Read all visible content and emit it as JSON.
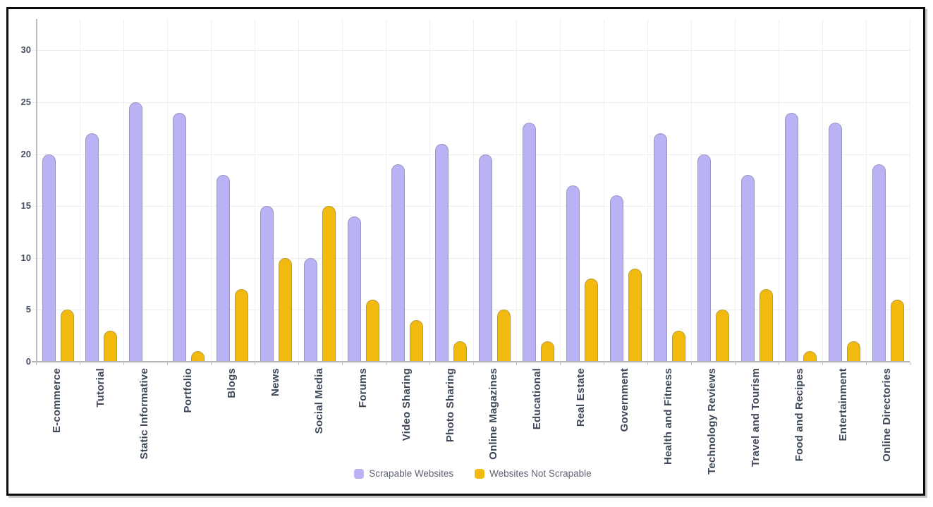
{
  "chart_data": {
    "type": "bar",
    "title": "",
    "xlabel": "",
    "ylabel": "",
    "categories": [
      "E-commerce",
      "Tutorial",
      "Static Informative",
      "Portfolio",
      "Blogs",
      "News",
      "Social Media",
      "Forums",
      "Video Sharing",
      "Photo Sharing",
      "Online Magazines",
      "Educational",
      "Real Estate",
      "Government",
      "Health and Fitness",
      "Technology Reviews",
      "Travel and Tourism",
      "Food and Recipes",
      "Entertainment",
      "Online Directories"
    ],
    "series": [
      {
        "name": "Scrapable Websites",
        "color": "#b9b3f5",
        "values": [
          20,
          22,
          25,
          24,
          18,
          15,
          10,
          14,
          19,
          21,
          20,
          23,
          17,
          16,
          22,
          20,
          18,
          24,
          23,
          19
        ]
      },
      {
        "name": "Websites Not Scrapable",
        "color": "#f2ba0e",
        "values": [
          5,
          3,
          0,
          1,
          7,
          10,
          15,
          6,
          4,
          2,
          5,
          2,
          8,
          9,
          3,
          5,
          7,
          1,
          2,
          6
        ]
      }
    ],
    "yticks": [
      0,
      5,
      10,
      15,
      20,
      25,
      30
    ],
    "ylim": [
      0,
      33
    ],
    "grid": true,
    "legend_position": "bottom",
    "colors": {
      "gridline": "#ededed",
      "axis": "#bdbdbd",
      "tick_label": "#475061",
      "category_label": "#3e4859",
      "legend_text": "#5d6370",
      "frame_border": "#0c0c0c"
    }
  }
}
